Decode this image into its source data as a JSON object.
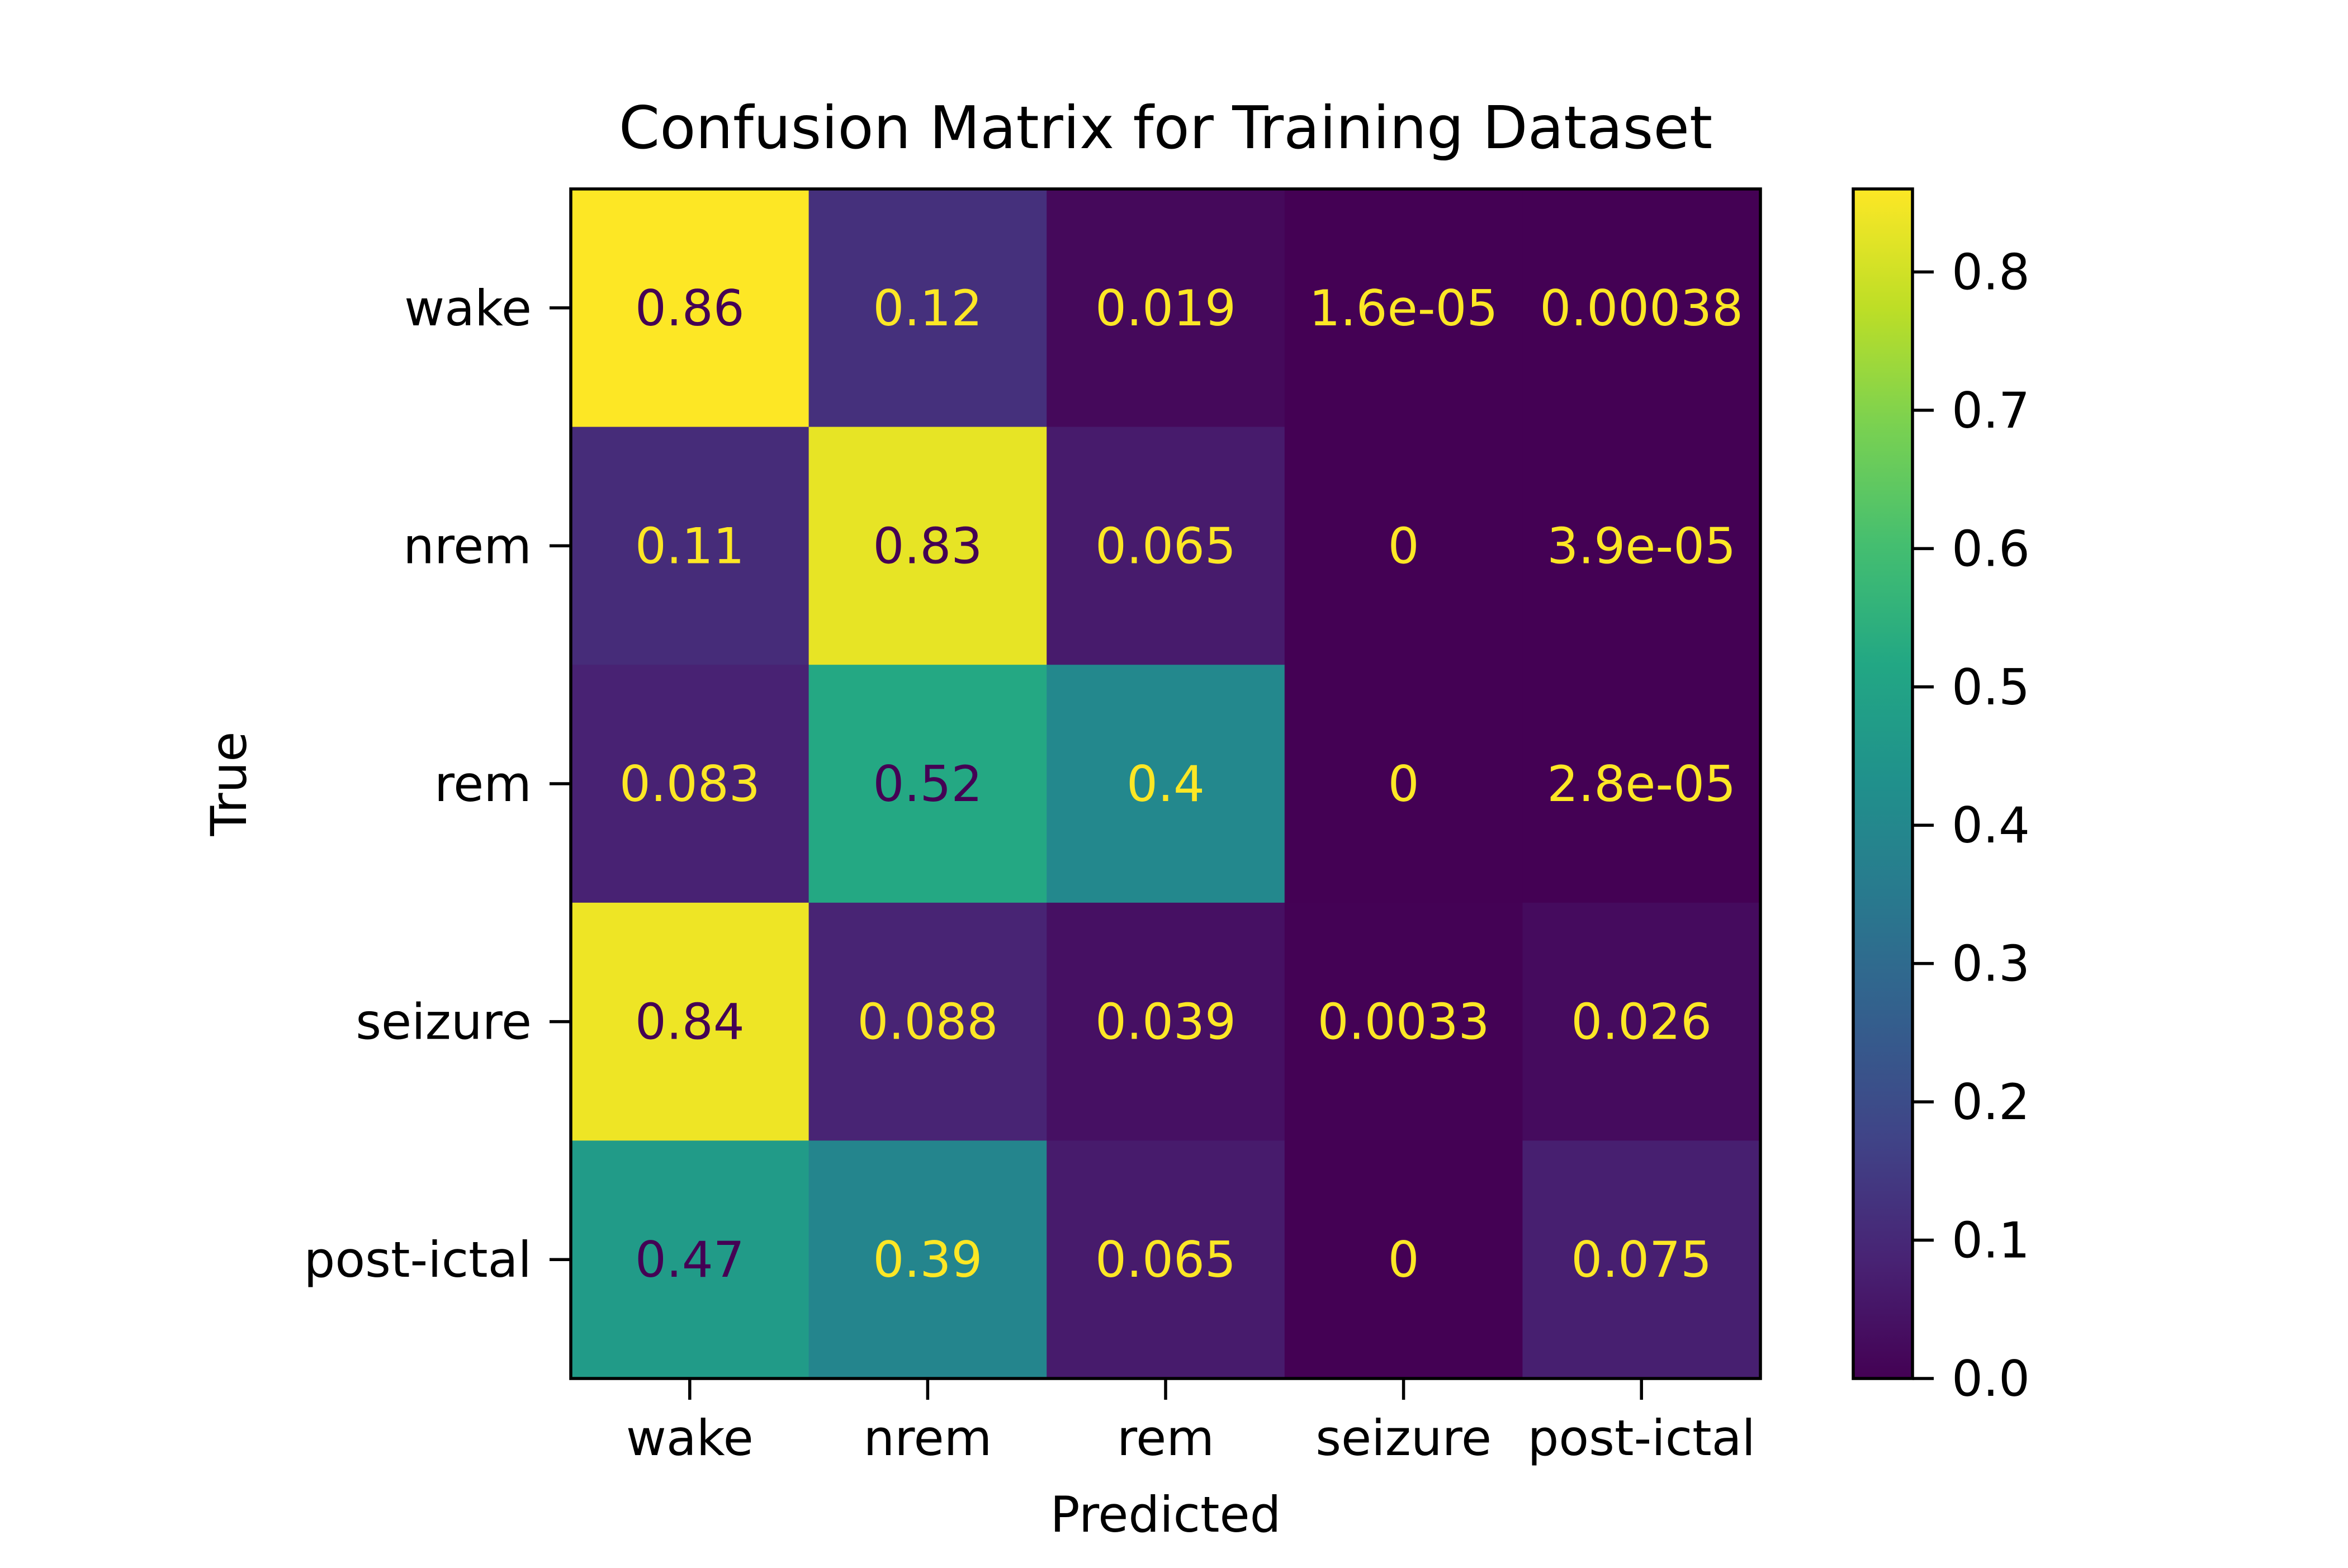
{
  "chart_data": {
    "type": "heatmap",
    "title": "Confusion Matrix for Training Dataset",
    "xlabel": "Predicted",
    "ylabel": "True",
    "x_categories": [
      "wake",
      "nrem",
      "rem",
      "seizure",
      "post-ictal"
    ],
    "y_categories": [
      "wake",
      "nrem",
      "rem",
      "seizure",
      "post-ictal"
    ],
    "cell_labels": [
      [
        "0.86",
        "0.12",
        "0.019",
        "1.6e-05",
        "0.00038"
      ],
      [
        "0.11",
        "0.83",
        "0.065",
        "0",
        "3.9e-05"
      ],
      [
        "0.083",
        "0.52",
        "0.4",
        "0",
        "2.8e-05"
      ],
      [
        "0.84",
        "0.088",
        "0.039",
        "0.0033",
        "0.026"
      ],
      [
        "0.47",
        "0.39",
        "0.065",
        "0",
        "0.075"
      ]
    ],
    "values": [
      [
        0.86,
        0.12,
        0.019,
        1.6e-05,
        0.00038
      ],
      [
        0.11,
        0.83,
        0.065,
        0,
        3.9e-05
      ],
      [
        0.083,
        0.52,
        0.4,
        0,
        2.8e-05
      ],
      [
        0.84,
        0.088,
        0.039,
        0.0033,
        0.026
      ],
      [
        0.47,
        0.39,
        0.065,
        0,
        0.075
      ]
    ],
    "colormap": "viridis",
    "vmin": 0.0,
    "vmax": 0.86,
    "colorbar_ticks": [
      "0.0",
      "0.1",
      "0.2",
      "0.3",
      "0.4",
      "0.5",
      "0.6",
      "0.7",
      "0.8"
    ],
    "colorbar_tick_values": [
      0.0,
      0.1,
      0.2,
      0.3,
      0.4,
      0.5,
      0.6,
      0.7,
      0.8
    ],
    "grid": false,
    "text_colors": {
      "on_dark": "#fde725",
      "on_light": "#440154"
    }
  }
}
